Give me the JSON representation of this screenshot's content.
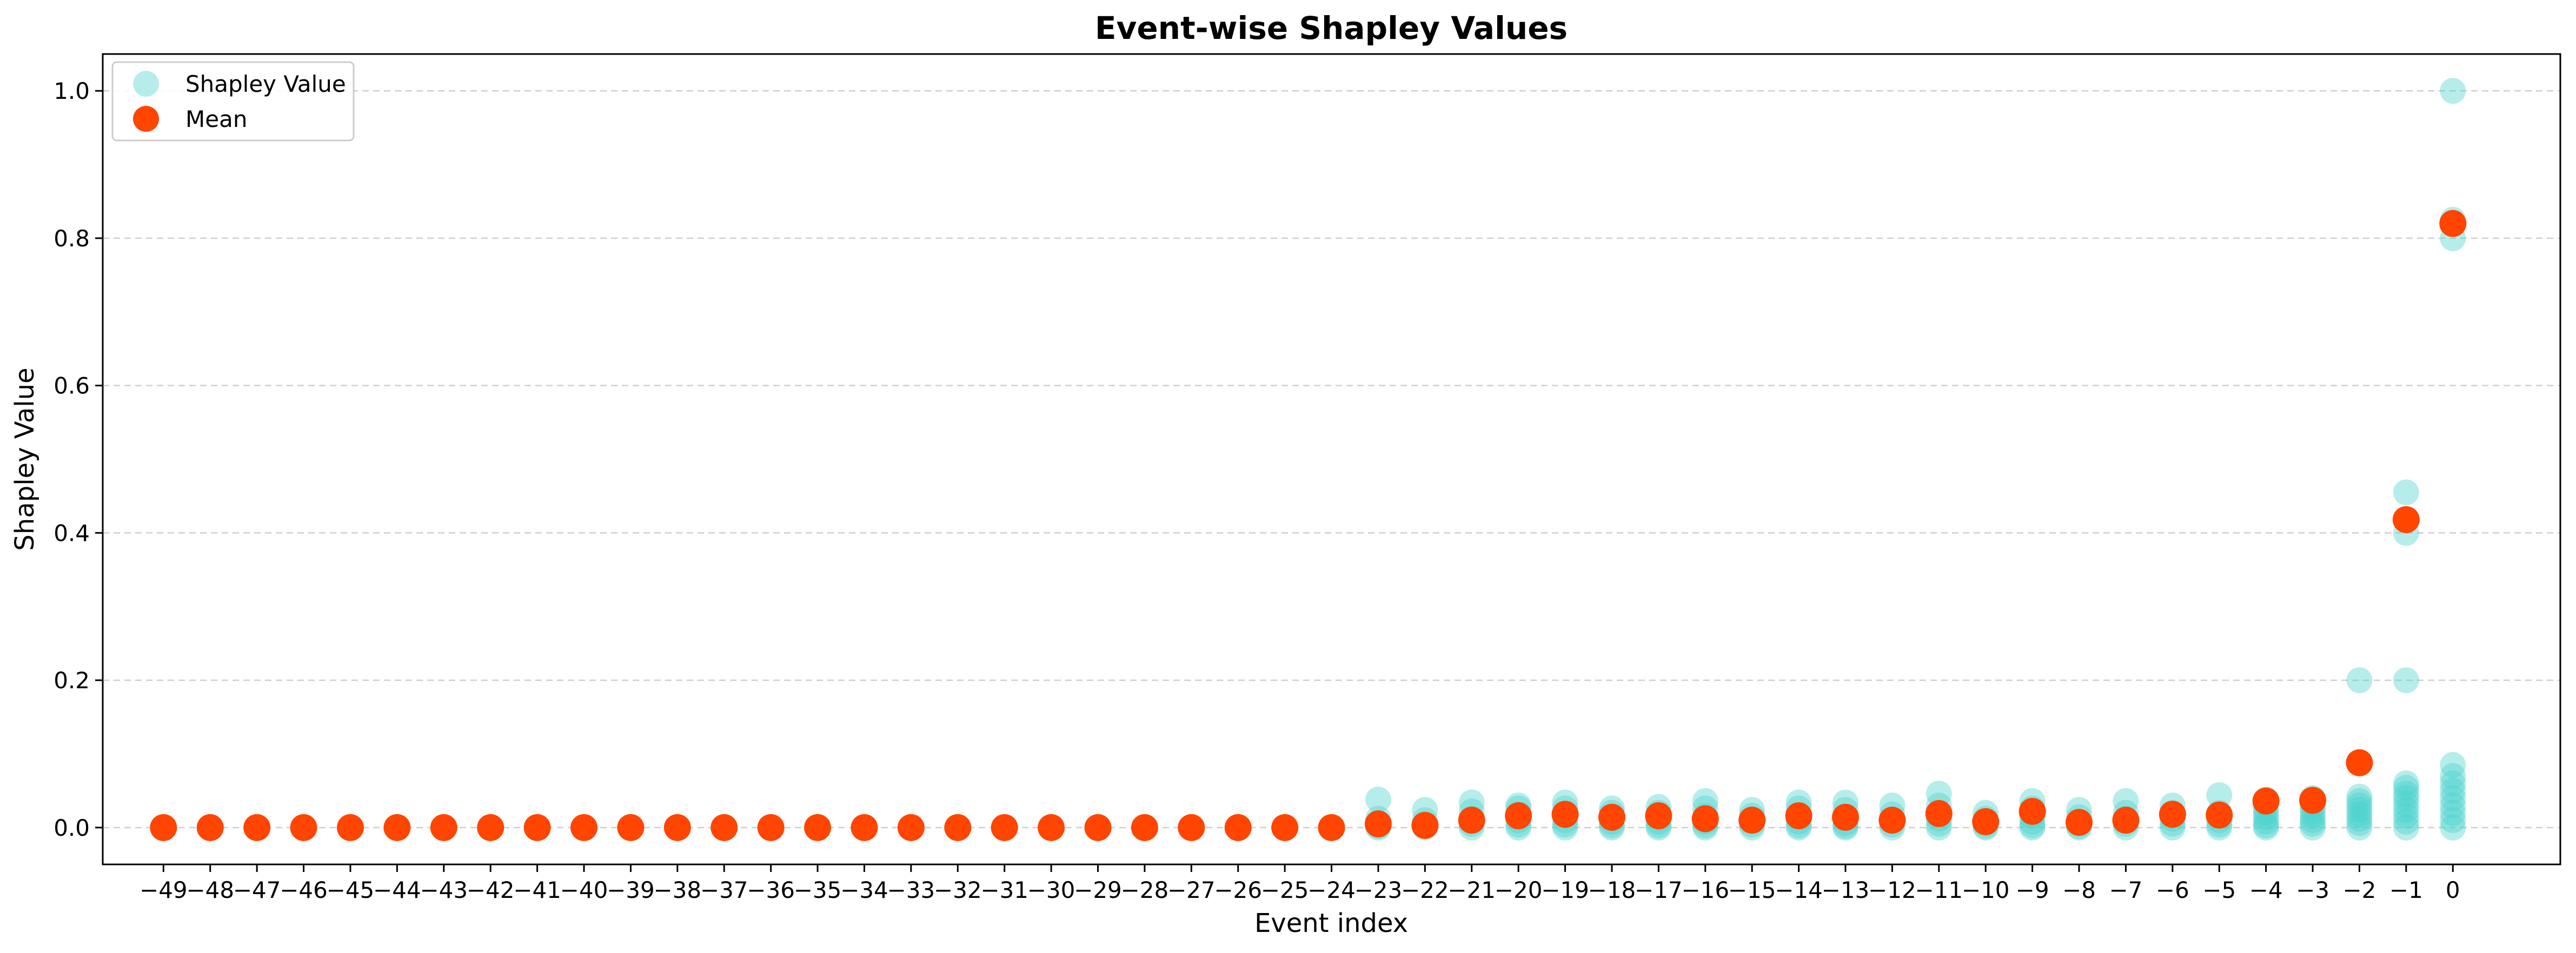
{
  "chart_data": {
    "type": "scatter",
    "title": "Event-wise Shapley Values",
    "xlabel": "Event index",
    "ylabel": "Shapley Value",
    "x_ticks": [
      -49,
      -48,
      -47,
      -46,
      -45,
      -44,
      -43,
      -42,
      -41,
      -40,
      -39,
      -38,
      -37,
      -36,
      -35,
      -34,
      -33,
      -32,
      -31,
      -30,
      -29,
      -28,
      -27,
      -26,
      -25,
      -24,
      -23,
      -22,
      -21,
      -20,
      -19,
      -18,
      -17,
      -16,
      -15,
      -14,
      -13,
      -12,
      -11,
      -10,
      -9,
      -8,
      -7,
      -6,
      -5,
      -4,
      -3,
      -2,
      -1,
      0
    ],
    "xlim": [
      -50.3,
      2.3
    ],
    "y_ticks": [
      "0.0",
      "0.2",
      "0.4",
      "0.6",
      "0.8",
      "1.0"
    ],
    "ylim": [
      -0.05,
      1.05
    ],
    "grid": "horizontal, dashed",
    "legend_position": "top-left",
    "colors": {
      "shapley": "#48d1cc",
      "mean": "#ff4500"
    },
    "series": [
      {
        "name": "Shapley Value",
        "marker": "circle",
        "alpha": 0.4,
        "points": [
          {
            "x": -23,
            "y": [
              0.038,
              0.012,
              0.006,
              0.002,
              0.0
            ]
          },
          {
            "x": -22,
            "y": [
              0.024,
              0.01,
              0.004,
              0.0
            ]
          },
          {
            "x": -21,
            "y": [
              0.034,
              0.022,
              0.012,
              0.005,
              0.0
            ]
          },
          {
            "x": -20,
            "y": [
              0.03,
              0.026,
              0.018,
              0.01,
              0.004,
              0.0
            ]
          },
          {
            "x": -19,
            "y": [
              0.034,
              0.026,
              0.018,
              0.01,
              0.004,
              0.0
            ]
          },
          {
            "x": -18,
            "y": [
              0.026,
              0.02,
              0.014,
              0.008,
              0.003,
              0.0
            ]
          },
          {
            "x": -17,
            "y": [
              0.028,
              0.02,
              0.014,
              0.008,
              0.003,
              0.0
            ]
          },
          {
            "x": -16,
            "y": [
              0.036,
              0.026,
              0.016,
              0.008,
              0.003,
              0.0
            ]
          },
          {
            "x": -15,
            "y": [
              0.024,
              0.016,
              0.01,
              0.004,
              0.0
            ]
          },
          {
            "x": -14,
            "y": [
              0.034,
              0.026,
              0.016,
              0.008,
              0.003,
              0.0
            ]
          },
          {
            "x": -13,
            "y": [
              0.034,
              0.024,
              0.014,
              0.006,
              0.002,
              0.0
            ]
          },
          {
            "x": -12,
            "y": [
              0.03,
              0.018,
              0.01,
              0.004,
              0.0
            ]
          },
          {
            "x": -11,
            "y": [
              0.046,
              0.03,
              0.02,
              0.012,
              0.005,
              0.0
            ]
          },
          {
            "x": -10,
            "y": [
              0.02,
              0.012,
              0.006,
              0.002,
              0.0
            ]
          },
          {
            "x": -9,
            "y": [
              0.036,
              0.026,
              0.016,
              0.008,
              0.003,
              0.0
            ]
          },
          {
            "x": -8,
            "y": [
              0.024,
              0.014,
              0.006,
              0.002,
              0.0
            ]
          },
          {
            "x": -7,
            "y": [
              0.036,
              0.02,
              0.012,
              0.005,
              0.0
            ]
          },
          {
            "x": -6,
            "y": [
              0.03,
              0.02,
              0.012,
              0.005,
              0.0
            ]
          },
          {
            "x": -5,
            "y": [
              0.044,
              0.02,
              0.01,
              0.004,
              0.0
            ]
          },
          {
            "x": -4,
            "y": [
              0.038,
              0.032,
              0.026,
              0.02,
              0.014,
              0.008,
              0.003,
              0.0
            ]
          },
          {
            "x": -3,
            "y": [
              0.04,
              0.034,
              0.028,
              0.022,
              0.016,
              0.01,
              0.005,
              0.0
            ]
          },
          {
            "x": -2,
            "y": [
              0.2,
              0.042,
              0.036,
              0.03,
              0.024,
              0.018,
              0.012,
              0.006,
              0.0
            ]
          },
          {
            "x": -1,
            "y": [
              0.455,
              0.4,
              0.2,
              0.06,
              0.054,
              0.046,
              0.04,
              0.032,
              0.024,
              0.016,
              0.008,
              0.0
            ]
          },
          {
            "x": 0,
            "y": [
              1.0,
              0.825,
              0.8,
              0.085,
              0.07,
              0.06,
              0.05,
              0.04,
              0.03,
              0.02,
              0.01,
              0.0
            ]
          }
        ]
      },
      {
        "name": "Mean",
        "marker": "circle",
        "alpha": 1.0,
        "x": [
          -49,
          -48,
          -47,
          -46,
          -45,
          -44,
          -43,
          -42,
          -41,
          -40,
          -39,
          -38,
          -37,
          -36,
          -35,
          -34,
          -33,
          -32,
          -31,
          -30,
          -29,
          -28,
          -27,
          -26,
          -25,
          -24,
          -23,
          -22,
          -21,
          -20,
          -19,
          -18,
          -17,
          -16,
          -15,
          -14,
          -13,
          -12,
          -11,
          -10,
          -9,
          -8,
          -7,
          -6,
          -5,
          -4,
          -3,
          -2,
          -1,
          0
        ],
        "y": [
          0,
          0,
          0,
          0,
          0,
          0,
          0,
          0,
          0,
          0,
          0,
          0,
          0,
          0,
          0,
          0,
          0,
          0,
          0,
          0,
          0,
          0,
          0,
          0,
          0,
          0,
          0.005,
          0.003,
          0.01,
          0.016,
          0.018,
          0.014,
          0.016,
          0.012,
          0.01,
          0.016,
          0.014,
          0.01,
          0.019,
          0.008,
          0.022,
          0.007,
          0.01,
          0.018,
          0.017,
          0.036,
          0.037,
          0.088,
          0.418,
          0.82
        ]
      }
    ]
  }
}
